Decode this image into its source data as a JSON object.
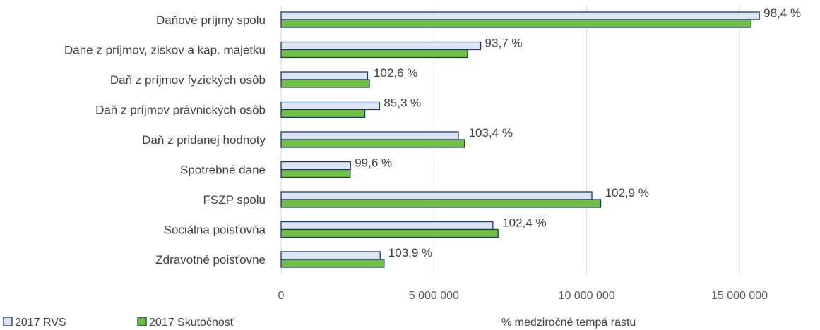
{
  "chart_data": {
    "type": "bar",
    "orientation": "horizontal",
    "categories": [
      "Daňové príjmy spolu",
      "Dane z príjmov, ziskov a kap. majetku",
      "Daň z príjmov fyzických osôb",
      "Daň z príjmov právnických osôb",
      "Daň z pridanej hodnoty",
      "Spotrebné dane",
      "FSZP spolu",
      "Sociálna poisťovňa",
      "Zdravotné poisťovne"
    ],
    "series": [
      {
        "name": "2017 RVS",
        "color": "#dbe4f1",
        "values": [
          15650000,
          6530000,
          2830000,
          3220000,
          5800000,
          2270000,
          10170000,
          6930000,
          3240000
        ]
      },
      {
        "name": "2017 Skutočnosť",
        "color": "#70c043",
        "values": [
          15380000,
          6100000,
          2890000,
          2740000,
          6000000,
          2260000,
          10460000,
          7100000,
          3370000
        ]
      }
    ],
    "data_labels": [
      "98,4 %",
      "93,7 %",
      "102,6 %",
      "85,3 %",
      "103,4 %",
      "99,6 %",
      "102,9 %",
      "102,4 %",
      "103,9 %"
    ],
    "ticks": [
      0,
      5000000,
      10000000,
      15000000
    ],
    "tick_labels": [
      "0",
      "5 000 000",
      "10 000 000",
      "15 000 000"
    ],
    "xlim": [
      0,
      16000000
    ],
    "grid": true,
    "legend_position": "bottom-left",
    "annotation": "% medziročné tempá rastu"
  }
}
